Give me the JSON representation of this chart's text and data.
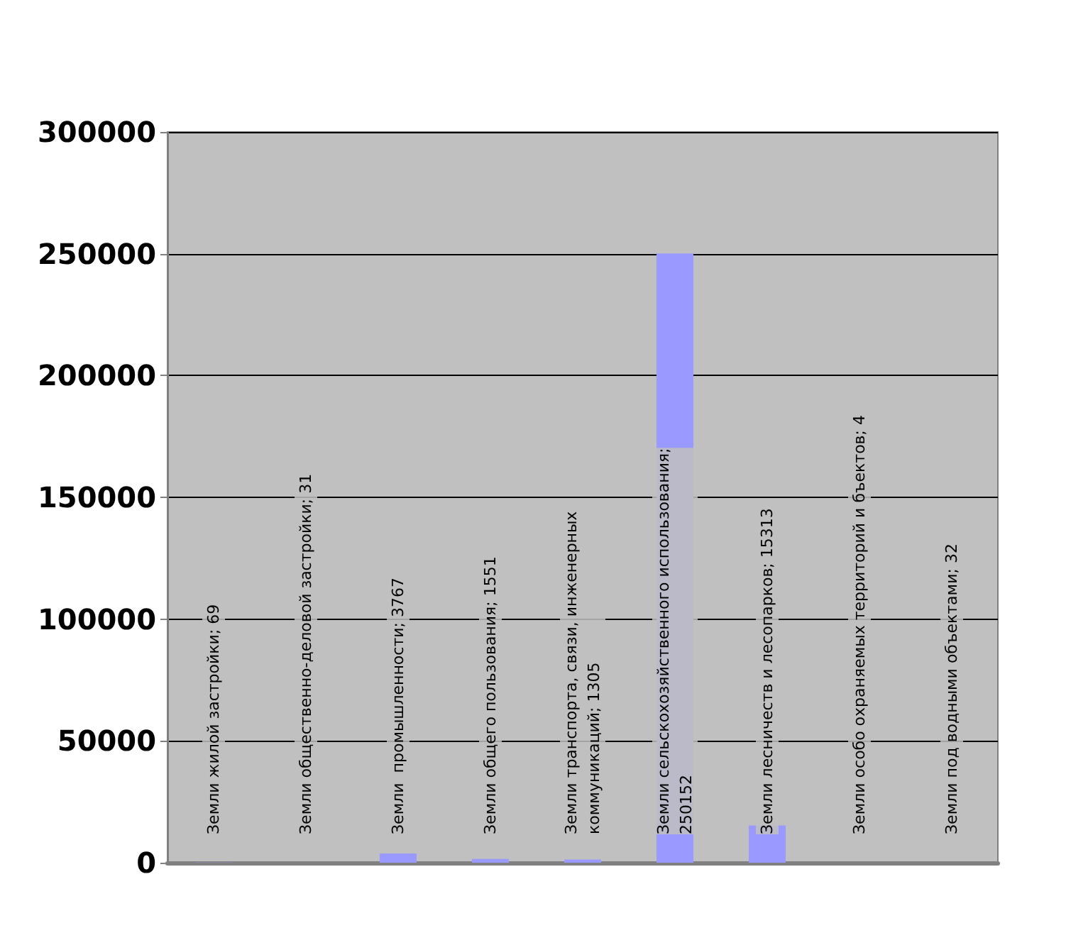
{
  "chart_data": {
    "type": "bar",
    "categories": [
      null,
      null,
      null,
      null,
      null,
      null,
      null,
      null,
      null
    ],
    "values": [
      69,
      31,
      3767,
      1551,
      1305,
      250152,
      15313,
      4,
      32
    ],
    "value_labels": [
      "Земли жилой застройки; 69",
      "Земли общественно-деловой застройки; 31",
      "Земли  промышленности; 3767",
      "Земли общего пользования; 1551",
      "Земли транспорта, связи, инженерных\nкоммуникаций; 1305",
      "Земли сельскохозяйственного использования;\n250152",
      "Земли лесничеств и лесопарков; 15313",
      "Земли особо охраняемых территорий и бъектов; 4",
      "Земли под водными объектами; 32"
    ],
    "color": "#9999ff",
    "ylim": [
      0,
      300000
    ],
    "yticks": [
      0,
      50000,
      100000,
      150000,
      200000,
      250000,
      300000
    ],
    "grid": "y"
  }
}
